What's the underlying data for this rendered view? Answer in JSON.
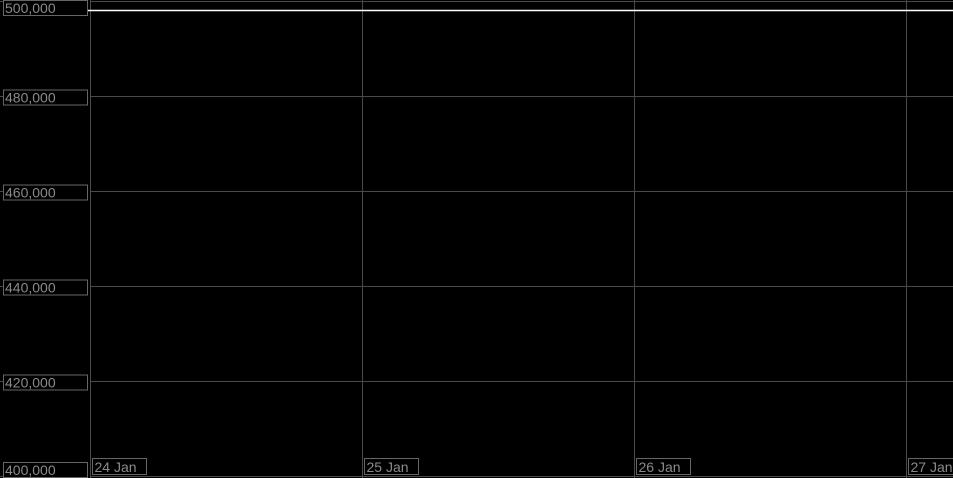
{
  "chart_data": {
    "type": "line",
    "title": "",
    "xlabel": "",
    "ylabel": "",
    "ylim": [
      400000,
      500000
    ],
    "yticks": [
      "400,000",
      "420,000",
      "440,000",
      "460,000",
      "480,000",
      "500,000"
    ],
    "ytick_values": [
      400000,
      420000,
      440000,
      460000,
      480000,
      500000
    ],
    "xticks": [
      "24 Jan",
      "25 Jan",
      "26 Jan",
      "27 Jan"
    ],
    "grid": true,
    "series": [
      {
        "x": [
          "24 Jan",
          "27 Jan"
        ],
        "values": [
          498000,
          498000
        ],
        "color": "#ffffff"
      }
    ],
    "colors": {
      "background": "#000000",
      "grid": "#4a4a4a",
      "label": "#8a8a8a",
      "line": "#ffffff"
    }
  }
}
